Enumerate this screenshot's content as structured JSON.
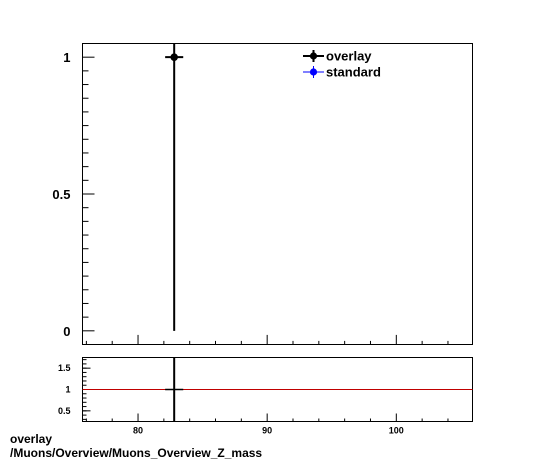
{
  "caption": {
    "line1": "overlay",
    "line2": "/Muons/Overview/Muons_Overview_Z_mass"
  },
  "chart_data": [
    {
      "type": "scatter",
      "panel": "main",
      "xlim": [
        75.7,
        105.9
      ],
      "ylim": [
        -0.05,
        1.05
      ],
      "yticks": [
        0,
        0.5,
        1
      ],
      "yticklabels": [
        "0",
        "0.5",
        "1"
      ],
      "legend_position": "top-right",
      "series": [
        {
          "name": "overlay",
          "color": "#000000",
          "marker": "circle",
          "points": [
            {
              "x": 82.8,
              "y": 1.0,
              "xerr": 0.7,
              "yerr_low": 1.0,
              "yerr_high": 0.05
            }
          ]
        },
        {
          "name": "standard",
          "color": "#0000ff",
          "marker": "circle",
          "points": []
        }
      ]
    },
    {
      "type": "scatter",
      "panel": "ratio",
      "xlim": [
        75.7,
        105.9
      ],
      "ylim": [
        0.25,
        1.75
      ],
      "xticks": [
        80,
        90,
        100
      ],
      "xticklabels": [
        "80",
        "90",
        "100"
      ],
      "yticks": [
        0.5,
        1,
        1.5
      ],
      "yticklabels": [
        "0.5",
        "1",
        "1.5"
      ],
      "reference_line": {
        "y": 1,
        "color": "#c00000"
      },
      "series": [
        {
          "color": "#000000",
          "points": [
            {
              "x": 82.8,
              "y": 1.0,
              "xerr": 0.7
            }
          ]
        }
      ]
    }
  ]
}
